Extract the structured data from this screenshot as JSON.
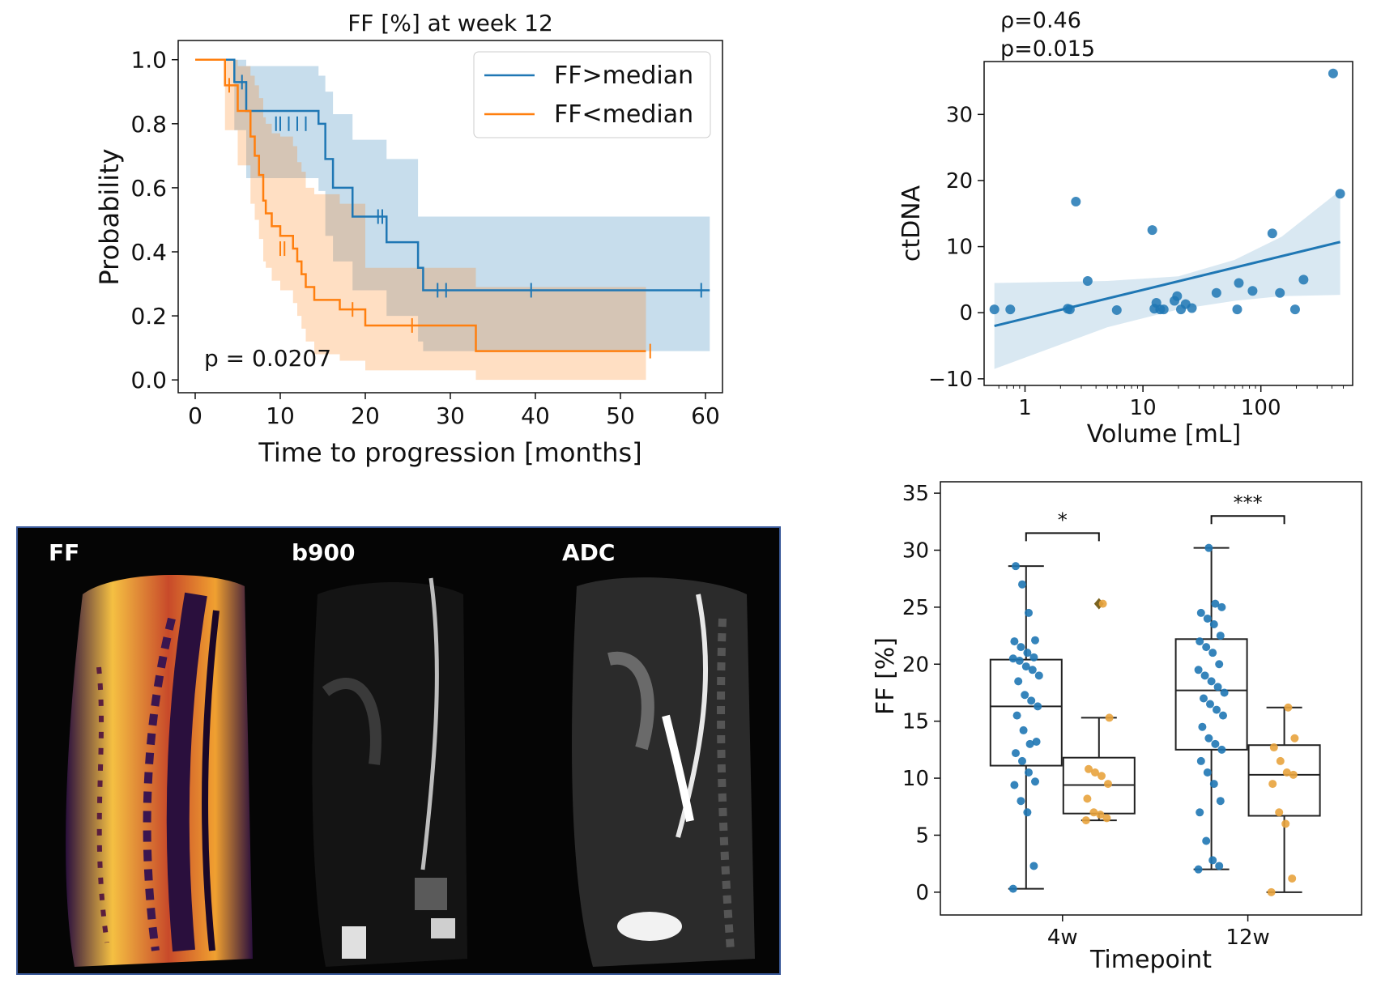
{
  "chart_data": [
    {
      "type": "line",
      "subtype": "kaplan-meier",
      "title": "FF [%] at week 12",
      "xlabel": "Time to progression [months]",
      "ylabel": "Probability",
      "xlim": [
        -2,
        62
      ],
      "ylim": [
        -0.04,
        1.06
      ],
      "xticks": [
        "0",
        "10",
        "20",
        "30",
        "40",
        "50",
        "60"
      ],
      "yticks": [
        "0.0",
        "0.2",
        "0.4",
        "0.6",
        "0.8",
        "1.0"
      ],
      "legend_position": "top-right",
      "annotation": "p = 0.0207",
      "series": [
        {
          "name": "FF>median",
          "color": "#1f77b4",
          "x": [
            0,
            3.8,
            4.6,
            6.0,
            14.5,
            15.3,
            16.2,
            18.5,
            22.5,
            26.2,
            26.8,
            60.5
          ],
          "y": [
            1.0,
            1.0,
            0.93,
            0.84,
            0.8,
            0.69,
            0.6,
            0.51,
            0.43,
            0.35,
            0.28,
            0.28
          ],
          "ci_upper": [
            1.0,
            1.0,
            1.0,
            0.98,
            0.95,
            0.9,
            0.83,
            0.75,
            0.69,
            0.51,
            0.51,
            0.51
          ],
          "ci_lower": [
            1.0,
            1.0,
            0.78,
            0.63,
            0.59,
            0.45,
            0.37,
            0.28,
            0.2,
            0.12,
            0.09,
            0.09
          ],
          "censored": [
            [
              5.5,
              0.93
            ],
            [
              9.5,
              0.8
            ],
            [
              10.0,
              0.8
            ],
            [
              11.0,
              0.8
            ],
            [
              12.0,
              0.8
            ],
            [
              13.0,
              0.8
            ],
            [
              21.5,
              0.51
            ],
            [
              22.0,
              0.51
            ],
            [
              28.5,
              0.28
            ],
            [
              29.5,
              0.28
            ],
            [
              39.5,
              0.28
            ],
            [
              59.5,
              0.28
            ]
          ]
        },
        {
          "name": "FF<median",
          "color": "#ff7f0e",
          "x": [
            0,
            3.5,
            5.0,
            6.5,
            7.0,
            7.5,
            8.0,
            8.3,
            9.0,
            10.0,
            11.5,
            12.0,
            12.5,
            13.0,
            14.0,
            17.0,
            20.0,
            33.0,
            53.0
          ],
          "y": [
            1.0,
            0.92,
            0.84,
            0.76,
            0.7,
            0.64,
            0.56,
            0.52,
            0.48,
            0.45,
            0.41,
            0.37,
            0.33,
            0.29,
            0.25,
            0.22,
            0.17,
            0.09,
            0.09
          ],
          "ci_upper": [
            1.0,
            1.0,
            0.98,
            0.95,
            0.92,
            0.88,
            0.82,
            0.8,
            0.77,
            0.76,
            0.73,
            0.68,
            0.65,
            0.6,
            0.58,
            0.55,
            0.35,
            0.29,
            0.29
          ],
          "ci_lower": [
            1.0,
            0.78,
            0.67,
            0.55,
            0.5,
            0.44,
            0.37,
            0.35,
            0.31,
            0.28,
            0.24,
            0.2,
            0.16,
            0.12,
            0.08,
            0.06,
            0.03,
            0.0,
            0.0
          ],
          "censored": [
            [
              4.0,
              0.92
            ],
            [
              10.0,
              0.41
            ],
            [
              10.5,
              0.41
            ],
            [
              18.5,
              0.22
            ],
            [
              25.5,
              0.17
            ],
            [
              53.5,
              0.09
            ]
          ]
        }
      ]
    },
    {
      "type": "scatter",
      "xlabel": "Volume [mL]",
      "ylabel": "ctDNA",
      "x_scale": "log",
      "xlim": [
        0.45,
        600
      ],
      "ylim": [
        -11,
        38
      ],
      "xticks": [
        "1",
        "10",
        "100"
      ],
      "yticks": [
        "−10",
        "0",
        "10",
        "20",
        "30"
      ],
      "annotations": [
        "ρ=0.46",
        "p=0.015"
      ],
      "color": "#1f77b4",
      "points": [
        [
          0.55,
          0.5
        ],
        [
          0.75,
          0.5
        ],
        [
          2.3,
          0.6
        ],
        [
          2.4,
          0.5
        ],
        [
          2.7,
          16.8
        ],
        [
          3.4,
          4.8
        ],
        [
          6.0,
          0.4
        ],
        [
          12.0,
          12.5
        ],
        [
          12.5,
          0.6
        ],
        [
          13.0,
          1.5
        ],
        [
          14.0,
          0.5
        ],
        [
          15.0,
          0.5
        ],
        [
          18.5,
          1.8
        ],
        [
          19.5,
          2.5
        ],
        [
          21.0,
          0.5
        ],
        [
          23.0,
          1.3
        ],
        [
          26.0,
          0.7
        ],
        [
          42.0,
          3.0
        ],
        [
          63.0,
          0.5
        ],
        [
          65.0,
          4.5
        ],
        [
          85.0,
          3.3
        ],
        [
          125.0,
          12.0
        ],
        [
          145.0,
          3.0
        ],
        [
          195.0,
          0.5
        ],
        [
          230.0,
          5.0
        ],
        [
          410.0,
          36.2
        ],
        [
          470.0,
          18.0
        ]
      ],
      "regression": {
        "x0": 0.55,
        "y0": -2.0,
        "x1": 470.0,
        "y1": 10.7
      },
      "ci_band_upper": [
        [
          0.55,
          4.5
        ],
        [
          5,
          4.8
        ],
        [
          20,
          5.5
        ],
        [
          60,
          8.0
        ],
        [
          150,
          11.5
        ],
        [
          470,
          18.5
        ]
      ],
      "ci_band_lower": [
        [
          0.55,
          -8.5
        ],
        [
          5,
          -2.2
        ],
        [
          20,
          0.5
        ],
        [
          60,
          1.8
        ],
        [
          150,
          2.5
        ],
        [
          470,
          2.7
        ]
      ]
    },
    {
      "type": "box",
      "xlabel": "Timepoint",
      "ylabel": "FF [%]",
      "ylim": [
        -2,
        36
      ],
      "yticks": [
        "0",
        "5",
        "10",
        "15",
        "20",
        "25",
        "30",
        "35"
      ],
      "categories": [
        "4w",
        "12w"
      ],
      "group_colors": [
        "#1f77b4",
        "#e8a33d"
      ],
      "boxes": [
        {
          "category": "4w",
          "group": 0,
          "whisker_low": 0.3,
          "q1": 11.1,
          "median": 16.3,
          "q3": 20.4,
          "whisker_high": 28.6,
          "points": [
            0.3,
            2.3,
            7.0,
            8.0,
            9.4,
            9.7,
            10.5,
            11.5,
            12.2,
            13.2,
            13.0,
            14.2,
            15.5,
            16.3,
            16.8,
            17.3,
            18.5,
            19.0,
            19.5,
            19.8,
            20.3,
            20.5,
            20.6,
            21.0,
            21.5,
            22.0,
            22.1,
            24.5,
            27.0,
            28.6
          ]
        },
        {
          "category": "4w",
          "group": 1,
          "whisker_low": 6.3,
          "q1": 6.9,
          "median": 9.4,
          "q3": 11.8,
          "whisker_high": 15.3,
          "outliers": [
            25.3
          ],
          "points": [
            6.3,
            6.5,
            6.8,
            7.0,
            8.2,
            9.5,
            10.2,
            10.5,
            10.8,
            15.3,
            25.3
          ]
        },
        {
          "category": "12w",
          "group": 0,
          "whisker_low": 2.0,
          "q1": 12.5,
          "median": 17.7,
          "q3": 22.2,
          "whisker_high": 30.2,
          "points": [
            2.0,
            2.3,
            2.8,
            4.5,
            7.0,
            8.0,
            9.5,
            10.5,
            11.5,
            12.5,
            13.0,
            13.5,
            14.5,
            15.5,
            16.0,
            16.5,
            17.0,
            17.5,
            18.0,
            18.5,
            19.0,
            19.5,
            20.0,
            21.0,
            21.5,
            22.0,
            22.5,
            23.5,
            24.0,
            24.5,
            25.0,
            25.3,
            30.2
          ]
        },
        {
          "category": "12w",
          "group": 1,
          "whisker_low": 0.0,
          "q1": 6.7,
          "median": 10.3,
          "q3": 12.9,
          "whisker_high": 16.2,
          "points": [
            0.0,
            1.2,
            6.0,
            7.0,
            9.5,
            10.3,
            10.5,
            11.5,
            12.7,
            13.5,
            16.2
          ]
        }
      ],
      "significance": [
        {
          "category": "4w",
          "label": "*",
          "y": 31.5
        },
        {
          "category": "12w",
          "label": "***",
          "y": 33.0
        }
      ]
    }
  ],
  "image_panel": {
    "labels": [
      "FF",
      "b900",
      "ADC"
    ],
    "colors": {
      "ff_bright": "#f5c042",
      "ff_mid": "#c84a2a",
      "ff_dark": "#2a0f3d",
      "border": "#3a5a9a"
    }
  }
}
